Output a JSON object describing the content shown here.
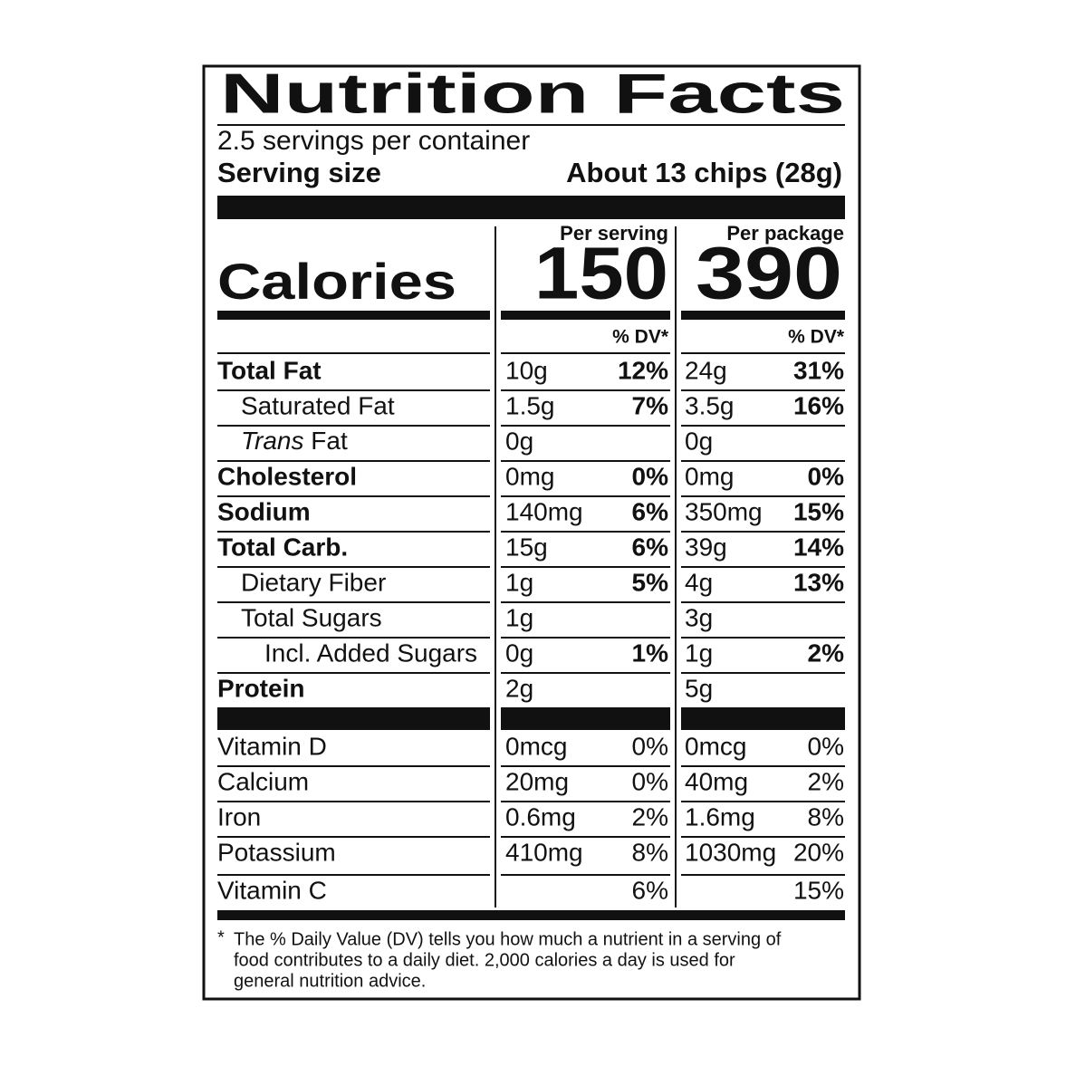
{
  "title": "Nutrition Facts",
  "servings_per_container": "2.5 servings per container",
  "serving_size": {
    "label": "Serving size",
    "value": "About 13 chips (28g)"
  },
  "columns": [
    "Per serving",
    "Per package"
  ],
  "calories": {
    "label": "Calories",
    "values": [
      "150",
      "390"
    ]
  },
  "dv_header": [
    "% DV*",
    "% DV*"
  ],
  "nutrients": [
    {
      "label": "Total Fat",
      "bold": true,
      "indent": 0,
      "values": [
        {
          "amount": "10g",
          "dv": "12%"
        },
        {
          "amount": "24g",
          "dv": "31%"
        }
      ]
    },
    {
      "label": "Saturated Fat",
      "bold": false,
      "indent": 1,
      "values": [
        {
          "amount": "1.5g",
          "dv": "7%"
        },
        {
          "amount": "3.5g",
          "dv": "16%"
        }
      ]
    },
    {
      "label_italic": "Trans",
      "label": " Fat",
      "bold": false,
      "indent": 1,
      "values": [
        {
          "amount": "0g"
        },
        {
          "amount": "0g"
        }
      ]
    },
    {
      "label": "Cholesterol",
      "bold": true,
      "indent": 0,
      "values": [
        {
          "amount": "0mg",
          "dv": "0%"
        },
        {
          "amount": "0mg",
          "dv": "0%"
        }
      ]
    },
    {
      "label": "Sodium",
      "bold": true,
      "indent": 0,
      "values": [
        {
          "amount": "140mg",
          "dv": "6%"
        },
        {
          "amount": "350mg",
          "dv": "15%"
        }
      ]
    },
    {
      "label": "Total Carb.",
      "bold": true,
      "indent": 0,
      "values": [
        {
          "amount": "15g",
          "dv": "6%"
        },
        {
          "amount": "39g",
          "dv": "14%"
        }
      ]
    },
    {
      "label": "Dietary Fiber",
      "bold": false,
      "indent": 1,
      "values": [
        {
          "amount": "1g",
          "dv": "5%"
        },
        {
          "amount": "4g",
          "dv": "13%"
        }
      ]
    },
    {
      "label": "Total Sugars",
      "bold": false,
      "indent": 1,
      "values": [
        {
          "amount": "1g"
        },
        {
          "amount": "3g"
        }
      ]
    },
    {
      "label": "Incl. Added Sugars",
      "bold": false,
      "indent": 2,
      "values": [
        {
          "amount": "0g",
          "dv": "1%"
        },
        {
          "amount": "1g",
          "dv": "2%"
        }
      ]
    },
    {
      "label": "Protein",
      "bold": true,
      "indent": 0,
      "values": [
        {
          "amount": "2g"
        },
        {
          "amount": "5g"
        }
      ]
    }
  ],
  "vitamins": [
    {
      "label": "Vitamin D",
      "values": [
        {
          "amount": "0mcg",
          "dv": "0%"
        },
        {
          "amount": "0mcg",
          "dv": "0%"
        }
      ]
    },
    {
      "label": "Calcium",
      "values": [
        {
          "amount": "20mg",
          "dv": "0%"
        },
        {
          "amount": "40mg",
          "dv": "2%"
        }
      ]
    },
    {
      "label": "Iron",
      "values": [
        {
          "amount": "0.6mg",
          "dv": "2%"
        },
        {
          "amount": "1.6mg",
          "dv": "8%"
        }
      ]
    },
    {
      "label": "Potassium",
      "values": [
        {
          "amount": "410mg",
          "dv": "8%"
        },
        {
          "amount": "1030mg",
          "dv": "20%"
        }
      ]
    },
    {
      "label": "Vitamin C",
      "values": [
        {
          "dv": "6%"
        },
        {
          "dv": "15%"
        }
      ]
    }
  ],
  "footnote": {
    "marker": "*",
    "lines": [
      "The % Daily Value (DV) tells you how much a nutrient in a serving of",
      "food contributes to a daily diet. 2,000 calories a day is used for",
      "general nutrition advice."
    ]
  }
}
